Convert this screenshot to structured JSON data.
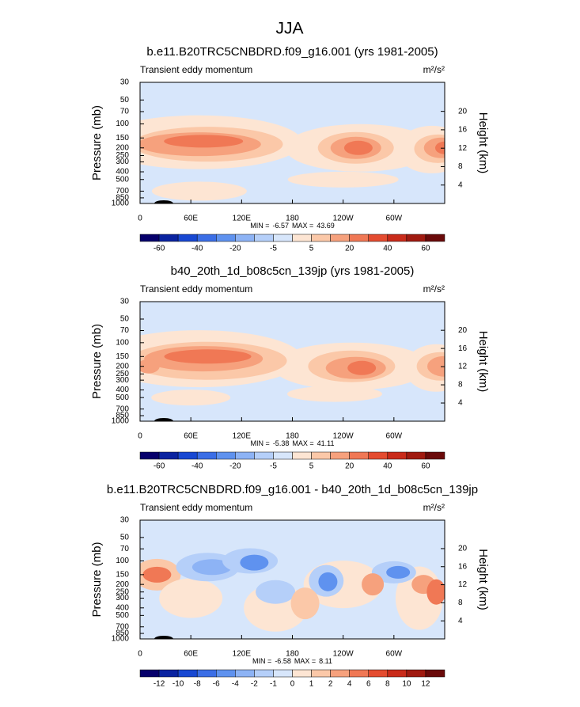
{
  "figure": {
    "title": "JJA"
  },
  "chart_data": [
    {
      "type": "contour",
      "title": "b.e11.B20TRC5CNBDRD.f09_g16.001 (yrs 1981-2005)",
      "subtitle": "Transient eddy momentum",
      "units": "m²/s²",
      "ylabel": "Pressure (mb)",
      "y2label": "Height (km)",
      "log_y": true,
      "xlim": [
        0,
        360
      ],
      "xticks": [
        0,
        {
          "value": 60,
          "label": "60E"
        },
        {
          "value": 120,
          "label": "120E"
        },
        180,
        {
          "value": 240,
          "label": "120W"
        },
        {
          "value": 300,
          "label": "60W"
        }
      ],
      "ylim": [
        1000,
        30
      ],
      "yticks": [
        1000,
        850,
        700,
        500,
        400,
        300,
        250,
        200,
        150,
        100,
        70,
        50,
        30
      ],
      "y2lim": [
        0,
        26.3
      ],
      "y2ticks": [
        4,
        8,
        12,
        16,
        20
      ],
      "stats": {
        "min_label": "MIN =",
        "min": -6.57,
        "max_label": "MAX =",
        "max": 43.69
      },
      "colorbar": {
        "colors": [
          "#06006b",
          "#0a23a0",
          "#1848d2",
          "#3b6ee6",
          "#5f92ef",
          "#8db3f5",
          "#b5cff9",
          "#d7e6fb",
          "#fde5d3",
          "#fbc8a8",
          "#f6a17d",
          "#f07855",
          "#e44c30",
          "#c92b1a",
          "#a01a10",
          "#6a0a0a"
        ],
        "levels": [
          -60,
          null,
          -40,
          null,
          -20,
          null,
          -5,
          null,
          5,
          null,
          20,
          null,
          40,
          null,
          60
        ]
      }
    },
    {
      "type": "contour",
      "title": "b40_20th_1d_b08c5cn_139jp (yrs 1981-2005)",
      "subtitle": "Transient eddy momentum",
      "units": "m²/s²",
      "ylabel": "Pressure (mb)",
      "y2label": "Height (km)",
      "log_y": true,
      "xlim": [
        0,
        360
      ],
      "xticks": [
        0,
        {
          "value": 60,
          "label": "60E"
        },
        {
          "value": 120,
          "label": "120E"
        },
        180,
        {
          "value": 240,
          "label": "120W"
        },
        {
          "value": 300,
          "label": "60W"
        }
      ],
      "ylim": [
        1000,
        30
      ],
      "yticks": [
        1000,
        850,
        700,
        500,
        400,
        300,
        250,
        200,
        150,
        100,
        70,
        50,
        30
      ],
      "y2lim": [
        0,
        26.3
      ],
      "y2ticks": [
        4,
        8,
        12,
        16,
        20
      ],
      "stats": {
        "min_label": "MIN =",
        "min": -5.38,
        "max_label": "MAX =",
        "max": 41.11
      },
      "colorbar": {
        "colors": [
          "#06006b",
          "#0a23a0",
          "#1848d2",
          "#3b6ee6",
          "#5f92ef",
          "#8db3f5",
          "#b5cff9",
          "#d7e6fb",
          "#fde5d3",
          "#fbc8a8",
          "#f6a17d",
          "#f07855",
          "#e44c30",
          "#c92b1a",
          "#a01a10",
          "#6a0a0a"
        ],
        "levels": [
          -60,
          null,
          -40,
          null,
          -20,
          null,
          -5,
          null,
          5,
          null,
          20,
          null,
          40,
          null,
          60
        ]
      }
    },
    {
      "type": "contour",
      "title": "b.e11.B20TRC5CNBDRD.f09_g16.001 - b40_20th_1d_b08c5cn_139jp",
      "subtitle": "Transient eddy momentum",
      "units": "m²/s²",
      "ylabel": "Pressure (mb)",
      "y2label": "Height (km)",
      "log_y": true,
      "xlim": [
        0,
        360
      ],
      "xticks": [
        0,
        {
          "value": 60,
          "label": "60E"
        },
        {
          "value": 120,
          "label": "120E"
        },
        180,
        {
          "value": 240,
          "label": "120W"
        },
        {
          "value": 300,
          "label": "60W"
        }
      ],
      "ylim": [
        1000,
        30
      ],
      "yticks": [
        1000,
        850,
        700,
        500,
        400,
        300,
        250,
        200,
        150,
        100,
        70,
        50,
        30
      ],
      "y2lim": [
        0,
        26.3
      ],
      "y2ticks": [
        4,
        8,
        12,
        16,
        20
      ],
      "stats": {
        "min_label": "MIN =",
        "min": -6.58,
        "max_label": "MAX =",
        "max": 8.11
      },
      "colorbar": {
        "colors": [
          "#06006b",
          "#0a23a0",
          "#1848d2",
          "#3b6ee6",
          "#5f92ef",
          "#8db3f5",
          "#b5cff9",
          "#d7e6fb",
          "#fde5d3",
          "#fbc8a8",
          "#f6a17d",
          "#f07855",
          "#e44c30",
          "#c92b1a",
          "#a01a10",
          "#6a0a0a"
        ],
        "levels": [
          -12,
          -10,
          -8,
          -6,
          -4,
          -2,
          -1,
          0,
          1,
          2,
          4,
          6,
          8,
          10,
          12
        ]
      }
    }
  ]
}
